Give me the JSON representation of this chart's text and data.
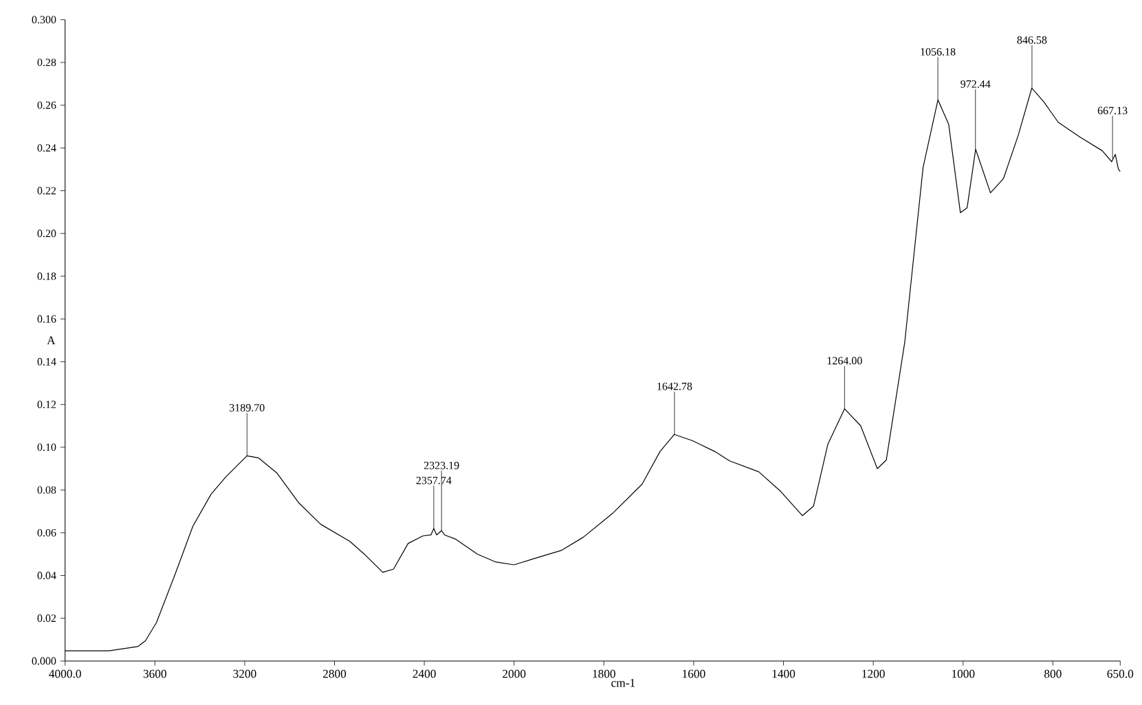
{
  "chart_data": [
    {
      "type": "line",
      "ylabel": "A",
      "xlim": [
        4000,
        2000
      ],
      "xticks": [
        {
          "value": 4000,
          "label": "4000.0"
        },
        3600,
        3200,
        2800,
        2400,
        2000
      ],
      "ylim": [
        0,
        0.3
      ],
      "yticks": [
        {
          "value": 0,
          "label": "0.000"
        },
        0.02,
        0.04,
        0.06,
        0.08,
        {
          "value": 0.1,
          "label": "0.10"
        },
        0.12,
        0.14,
        0.16,
        0.18,
        {
          "value": 0.2,
          "label": "0.20"
        },
        0.22,
        0.24,
        0.26,
        0.28,
        {
          "value": 0.3,
          "label": "0.300"
        }
      ],
      "x": [
        4000,
        3805,
        3675,
        3642,
        3593,
        3512,
        3431,
        3350,
        3285,
        3190,
        3138,
        3057,
        2959,
        2862,
        2732,
        2667,
        2585,
        2537,
        2472,
        2407,
        2370,
        2358,
        2345,
        2323,
        2310,
        2260,
        2163,
        2081,
        2000
      ],
      "series": [
        {
          "color": "#000000",
          "values": [
            0.0048,
            0.0048,
            0.0068,
            0.0095,
            0.018,
            0.04,
            0.063,
            0.078,
            0.086,
            0.096,
            0.095,
            0.088,
            0.074,
            0.064,
            0.056,
            0.05,
            0.0415,
            0.043,
            0.055,
            0.0585,
            0.059,
            0.062,
            0.059,
            0.061,
            0.059,
            0.057,
            0.05,
            0.0463,
            0.045
          ]
        }
      ],
      "annotations": [
        {
          "text": "3189.70",
          "x": 3189.7,
          "y": 0.096
        },
        {
          "text": "2357.74",
          "x": 2357.74,
          "y": 0.062
        },
        {
          "text": "2323.19",
          "x": 2323.19,
          "y": 0.061
        }
      ],
      "marker": "none",
      "line_style": "solid"
    },
    {
      "type": "line",
      "xlabel": "cm-1",
      "xlim": [
        2000,
        650
      ],
      "xticks": [
        1800,
        1600,
        1400,
        1200,
        1000,
        800,
        {
          "value": 650,
          "label": "650.0"
        }
      ],
      "ylim": [
        0,
        0.3
      ],
      "tick_labels": "x",
      "x": [
        2000,
        1959,
        1894,
        1846,
        1781,
        1715,
        1675,
        1643,
        1602,
        1553,
        1520,
        1455,
        1406,
        1358,
        1333,
        1301,
        1264,
        1228,
        1191,
        1171,
        1130,
        1089,
        1056,
        1032,
        1006,
        991,
        972,
        939,
        910,
        877,
        847,
        820,
        788,
        739,
        690,
        669,
        661,
        654,
        650
      ],
      "series": [
        {
          "color": "#000000",
          "values": [
            0.045,
            0.0477,
            0.0518,
            0.0579,
            0.069,
            0.0827,
            0.098,
            0.106,
            0.103,
            0.098,
            0.0936,
            0.0885,
            0.0793,
            0.068,
            0.0725,
            0.1015,
            0.118,
            0.11,
            0.09,
            0.094,
            0.149,
            0.231,
            0.2625,
            0.251,
            0.2097,
            0.212,
            0.2394,
            0.219,
            0.2257,
            0.246,
            0.268,
            0.2615,
            0.252,
            0.245,
            0.2387,
            0.2336,
            0.237,
            0.23,
            0.229
          ]
        }
      ],
      "annotations": [
        {
          "text": "1642.78",
          "x": 1642.78,
          "y": 0.106
        },
        {
          "text": "1264.00",
          "x": 1264.0,
          "y": 0.118
        },
        {
          "text": "1056.18",
          "x": 1056.18,
          "y": 0.2625
        },
        {
          "text": "972.44",
          "x": 972.44,
          "y": 0.2394
        },
        {
          "text": "846.58",
          "x": 846.58,
          "y": 0.268
        },
        {
          "text": "667.13",
          "x": 667.13,
          "y": 0.235
        }
      ],
      "marker": "none",
      "line_style": "solid"
    }
  ]
}
